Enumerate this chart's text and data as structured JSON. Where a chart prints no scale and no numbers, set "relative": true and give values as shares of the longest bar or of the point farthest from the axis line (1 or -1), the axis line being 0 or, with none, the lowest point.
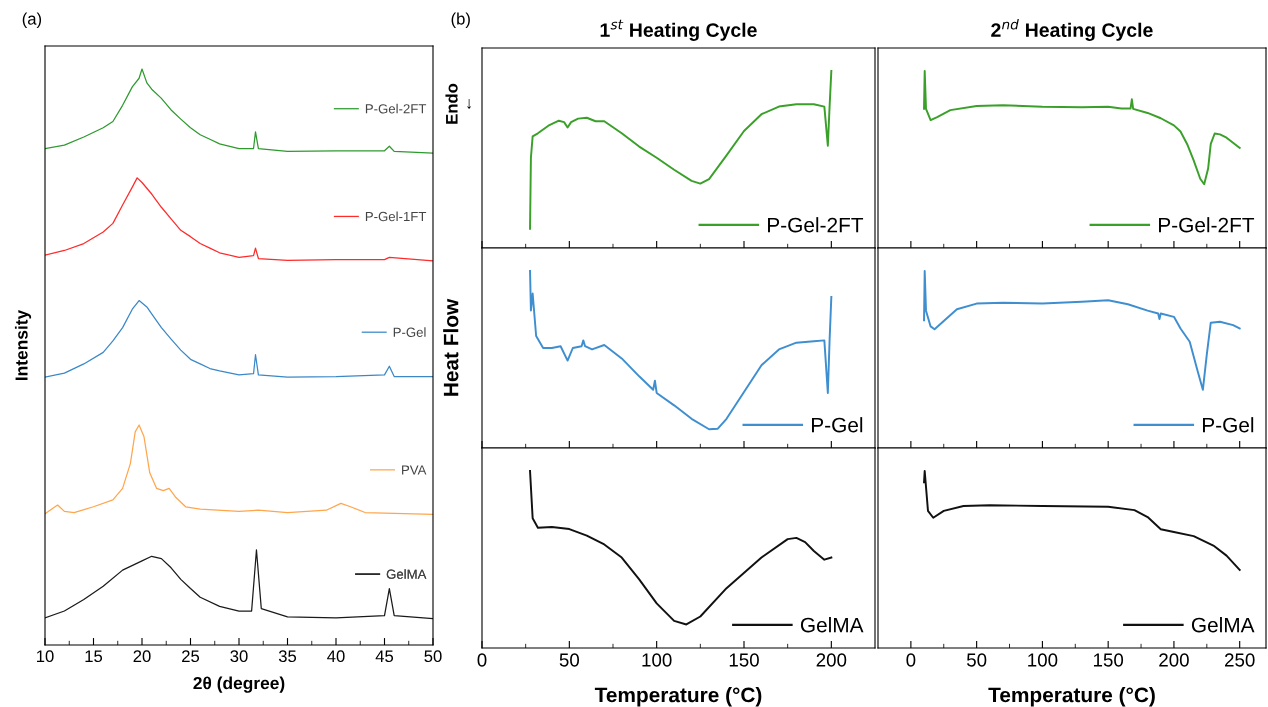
{
  "chart_data": [
    {
      "type": "line",
      "relative": true,
      "xlabel": "2θ (degree)",
      "ylabel": "Intensity",
      "annotations": [
        "(a)"
      ],
      "xlim": [
        10,
        50
      ],
      "xticks": [
        10,
        15,
        20,
        25,
        30,
        35,
        40,
        45,
        50
      ],
      "tick_labels": "x",
      "legend": "right",
      "series": [
        {
          "name": "P-Gel-2FT",
          "color": "#2e9a2e",
          "x": [
            10,
            12,
            14,
            16,
            17,
            18,
            19,
            19.7,
            20,
            20.5,
            21,
            22,
            23,
            24,
            25,
            26,
            27,
            28,
            30,
            31.5,
            31.7,
            32,
            35,
            40,
            45,
            45.5,
            46,
            50
          ],
          "values": [
            0.862,
            0.868,
            0.882,
            0.898,
            0.909,
            0.937,
            0.969,
            0.984,
            1.0,
            0.976,
            0.965,
            0.949,
            0.929,
            0.913,
            0.898,
            0.886,
            0.878,
            0.87,
            0.862,
            0.862,
            0.891,
            0.862,
            0.857,
            0.858,
            0.858,
            0.866,
            0.857,
            0.854
          ]
        },
        {
          "name": "P-Gel-1FT",
          "color": "#ff2a2a",
          "x": [
            10,
            12,
            14,
            16,
            17,
            18,
            19,
            19.5,
            20,
            21,
            22,
            23,
            24,
            25,
            26,
            27,
            28,
            30,
            31.5,
            31.7,
            32,
            35,
            40,
            45,
            45.5,
            50
          ],
          "values": [
            0.677,
            0.685,
            0.697,
            0.717,
            0.732,
            0.764,
            0.795,
            0.811,
            0.803,
            0.783,
            0.76,
            0.74,
            0.72,
            0.709,
            0.697,
            0.689,
            0.681,
            0.673,
            0.676,
            0.689,
            0.671,
            0.668,
            0.669,
            0.669,
            0.673,
            0.667
          ]
        },
        {
          "name": "P-Gel",
          "color": "#3a88c8",
          "x": [
            10,
            12,
            14,
            16,
            17,
            18,
            19,
            19.7,
            20.5,
            21,
            22,
            23,
            24,
            25,
            26,
            27,
            28,
            30,
            31.5,
            31.7,
            32,
            35,
            40,
            45,
            45.5,
            46,
            50
          ],
          "values": [
            0.465,
            0.472,
            0.488,
            0.508,
            0.528,
            0.551,
            0.583,
            0.598,
            0.587,
            0.575,
            0.551,
            0.531,
            0.512,
            0.496,
            0.488,
            0.48,
            0.476,
            0.469,
            0.471,
            0.504,
            0.469,
            0.465,
            0.466,
            0.469,
            0.484,
            0.466,
            0.466
          ]
        },
        {
          "name": "PVA",
          "color": "#ffa64d",
          "x": [
            10,
            11.3,
            12,
            13,
            15,
            17,
            18,
            18.8,
            19.3,
            19.7,
            20.2,
            20.8,
            21.5,
            22.2,
            22.8,
            23.5,
            24.5,
            26,
            30,
            32,
            35,
            39,
            40.5,
            41.5,
            43,
            50
          ],
          "values": [
            0.228,
            0.243,
            0.232,
            0.23,
            0.24,
            0.252,
            0.272,
            0.315,
            0.37,
            0.382,
            0.362,
            0.299,
            0.272,
            0.268,
            0.272,
            0.256,
            0.24,
            0.236,
            0.232,
            0.234,
            0.23,
            0.234,
            0.246,
            0.24,
            0.23,
            0.227
          ]
        },
        {
          "name": "GelMA",
          "color": "#1a1a1a",
          "x": [
            10,
            12,
            14,
            16,
            18,
            20,
            21,
            22,
            23,
            24,
            25,
            26,
            28,
            30,
            31.3,
            31.8,
            32.3,
            35,
            40,
            45,
            45.5,
            46,
            50
          ],
          "values": [
            0.047,
            0.059,
            0.079,
            0.102,
            0.13,
            0.146,
            0.154,
            0.15,
            0.134,
            0.114,
            0.098,
            0.083,
            0.067,
            0.059,
            0.059,
            0.165,
            0.063,
            0.049,
            0.047,
            0.051,
            0.098,
            0.051,
            0.046
          ]
        }
      ]
    },
    {
      "type": "line",
      "relative": true,
      "title": "1$^{st}$ Heating Cycle",
      "annotations": [
        "(b)",
        "Endo\n←"
      ],
      "xlim": [
        0,
        225
      ],
      "xticks": [
        0,
        50,
        100,
        150,
        200
      ],
      "tick_labels": false,
      "legend": "bottom right",
      "series": [
        {
          "name": "P-Gel-2FT",
          "color": "#3aa02a",
          "x": [
            27.5,
            28,
            29,
            32,
            38,
            44,
            47,
            49,
            51,
            55,
            60,
            65,
            70,
            80,
            90,
            100,
            110,
            120,
            125,
            130,
            140,
            150,
            160,
            170,
            180,
            190,
            196,
            198,
            199,
            200
          ],
          "values": [
            0.108,
            0.51,
            0.631,
            0.648,
            0.691,
            0.719,
            0.711,
            0.681,
            0.711,
            0.731,
            0.736,
            0.716,
            0.716,
            0.648,
            0.573,
            0.51,
            0.442,
            0.379,
            0.364,
            0.389,
            0.523,
            0.661,
            0.756,
            0.799,
            0.812,
            0.812,
            0.799,
            0.578,
            0.799,
            1.0
          ]
        }
      ]
    },
    {
      "type": "line",
      "relative": true,
      "ylabel": "Heat Flow",
      "xlim": [
        0,
        225
      ],
      "xticks": [
        0,
        50,
        100,
        150,
        200
      ],
      "tick_labels": false,
      "legend": "bottom right",
      "series": [
        {
          "name": "P-Gel",
          "color": "#3f8fd0",
          "x": [
            27.5,
            28,
            29,
            31,
            35,
            40,
            45,
            49,
            52,
            57,
            58,
            59,
            63,
            70,
            80,
            90,
            98,
            99,
            100,
            110,
            120,
            130,
            135,
            140,
            150,
            160,
            170,
            180,
            190,
            196,
            198,
            199,
            200
          ],
          "values": [
            1.0,
            0.777,
            0.873,
            0.633,
            0.565,
            0.565,
            0.575,
            0.494,
            0.565,
            0.575,
            0.608,
            0.575,
            0.557,
            0.582,
            0.506,
            0.405,
            0.329,
            0.38,
            0.311,
            0.241,
            0.165,
            0.106,
            0.109,
            0.165,
            0.316,
            0.468,
            0.557,
            0.595,
            0.603,
            0.608,
            0.311,
            0.608,
            0.853
          ]
        }
      ]
    },
    {
      "type": "line",
      "relative": true,
      "xlabel": "Temperature (°C)",
      "xlim": [
        0,
        225
      ],
      "xticks": [
        0,
        50,
        100,
        150,
        200
      ],
      "tick_labels": "x",
      "legend": "bottom right",
      "series": [
        {
          "name": "GelMA",
          "color": "#111111",
          "x": [
            27.5,
            29,
            32,
            40,
            50,
            60,
            70,
            80,
            90,
            100,
            110,
            117,
            125,
            140,
            160,
            175,
            180,
            185,
            190,
            196,
            200
          ],
          "values": [
            1.0,
            0.733,
            0.679,
            0.684,
            0.672,
            0.635,
            0.585,
            0.511,
            0.388,
            0.252,
            0.153,
            0.133,
            0.178,
            0.338,
            0.511,
            0.615,
            0.622,
            0.598,
            0.548,
            0.499,
            0.511
          ]
        }
      ]
    },
    {
      "type": "line",
      "relative": true,
      "title": "2$^{nd}$ Heating Cycle",
      "xlim": [
        -25,
        270
      ],
      "xticks": [
        0,
        50,
        100,
        150,
        200,
        250
      ],
      "tick_labels": false,
      "legend": "bottom right",
      "series": [
        {
          "name": "P-Gel-2FT",
          "color": "#3aa02a",
          "x": [
            10,
            10.5,
            11.5,
            15,
            20,
            30,
            50,
            70,
            100,
            130,
            150,
            160,
            167,
            168,
            169,
            180,
            190,
            200,
            205,
            210,
            215,
            220,
            223,
            226,
            228,
            231,
            235,
            240,
            250
          ],
          "values": [
            0.786,
            1.0,
            0.786,
            0.723,
            0.74,
            0.779,
            0.802,
            0.807,
            0.798,
            0.795,
            0.798,
            0.788,
            0.788,
            0.84,
            0.786,
            0.763,
            0.733,
            0.693,
            0.658,
            0.588,
            0.495,
            0.391,
            0.36,
            0.449,
            0.588,
            0.647,
            0.642,
            0.623,
            0.565
          ]
        }
      ]
    },
    {
      "type": "line",
      "relative": true,
      "xlim": [
        -25,
        270
      ],
      "xticks": [
        0,
        50,
        100,
        150,
        200,
        250
      ],
      "tick_labels": false,
      "legend": "bottom right",
      "series": [
        {
          "name": "P-Gel",
          "color": "#3f8fd0",
          "x": [
            10,
            10.5,
            11.5,
            15,
            18,
            25,
            35,
            50,
            70,
            100,
            130,
            150,
            165,
            180,
            188,
            189,
            190,
            200,
            205,
            212,
            218,
            222,
            225,
            228,
            235,
            245,
            250
          ],
          "values": [
            0.722,
            1.0,
            0.776,
            0.687,
            0.671,
            0.718,
            0.784,
            0.816,
            0.821,
            0.816,
            0.826,
            0.835,
            0.812,
            0.776,
            0.76,
            0.729,
            0.76,
            0.741,
            0.675,
            0.6,
            0.435,
            0.329,
            0.529,
            0.708,
            0.713,
            0.694,
            0.675
          ]
        }
      ]
    },
    {
      "type": "line",
      "relative": true,
      "xlabel": "Temperature (°C)",
      "xlim": [
        -25,
        270
      ],
      "xticks": [
        0,
        50,
        100,
        150,
        200,
        250
      ],
      "tick_labels": "x",
      "legend": "bottom right",
      "series": [
        {
          "name": "GelMA",
          "color": "#111111",
          "x": [
            10,
            10.5,
            13,
            17,
            25,
            40,
            60,
            100,
            150,
            170,
            180,
            190,
            200,
            215,
            230,
            240,
            250
          ],
          "values": [
            0.936,
            1.0,
            0.775,
            0.736,
            0.775,
            0.802,
            0.807,
            0.802,
            0.798,
            0.779,
            0.74,
            0.671,
            0.655,
            0.632,
            0.579,
            0.522,
            0.441
          ]
        }
      ]
    }
  ]
}
